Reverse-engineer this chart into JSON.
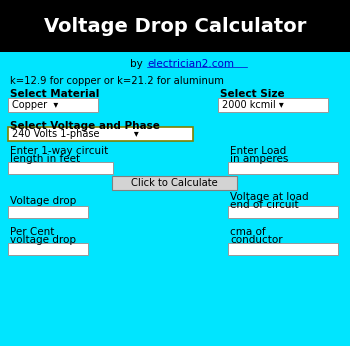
{
  "title": "Voltage Drop Calculator",
  "title_color": "#ffffff",
  "title_bg": "#000000",
  "body_bg": "#00e5ff",
  "k_text": "k=12.9 for copper or k=21.2 for aluminum",
  "select_material_label": "Select Material",
  "select_size_label": "Select Size",
  "voltage_phase_label": "Select Voltage and Phase",
  "button_text": "Click to Calculate",
  "vdrop_label": "Voltage drop",
  "vend_label1": "Voltage at load",
  "vend_label2": "end of circuit",
  "pcent_label1": "Per Cent",
  "pcent_label2": "voltage drop",
  "cma_label1": "cma of",
  "cma_label2": "conductor",
  "length_label1": "Enter 1-way circuit",
  "length_label2": "length in feet",
  "load_label1": "Enter Load",
  "load_label2": "in amperes",
  "input_box_color": "#ffffff",
  "dropdown_border": "#808000",
  "button_bg": "#d3d3d3",
  "button_border": "#808080",
  "text_color": "#000000",
  "link_color": "#0000cc"
}
